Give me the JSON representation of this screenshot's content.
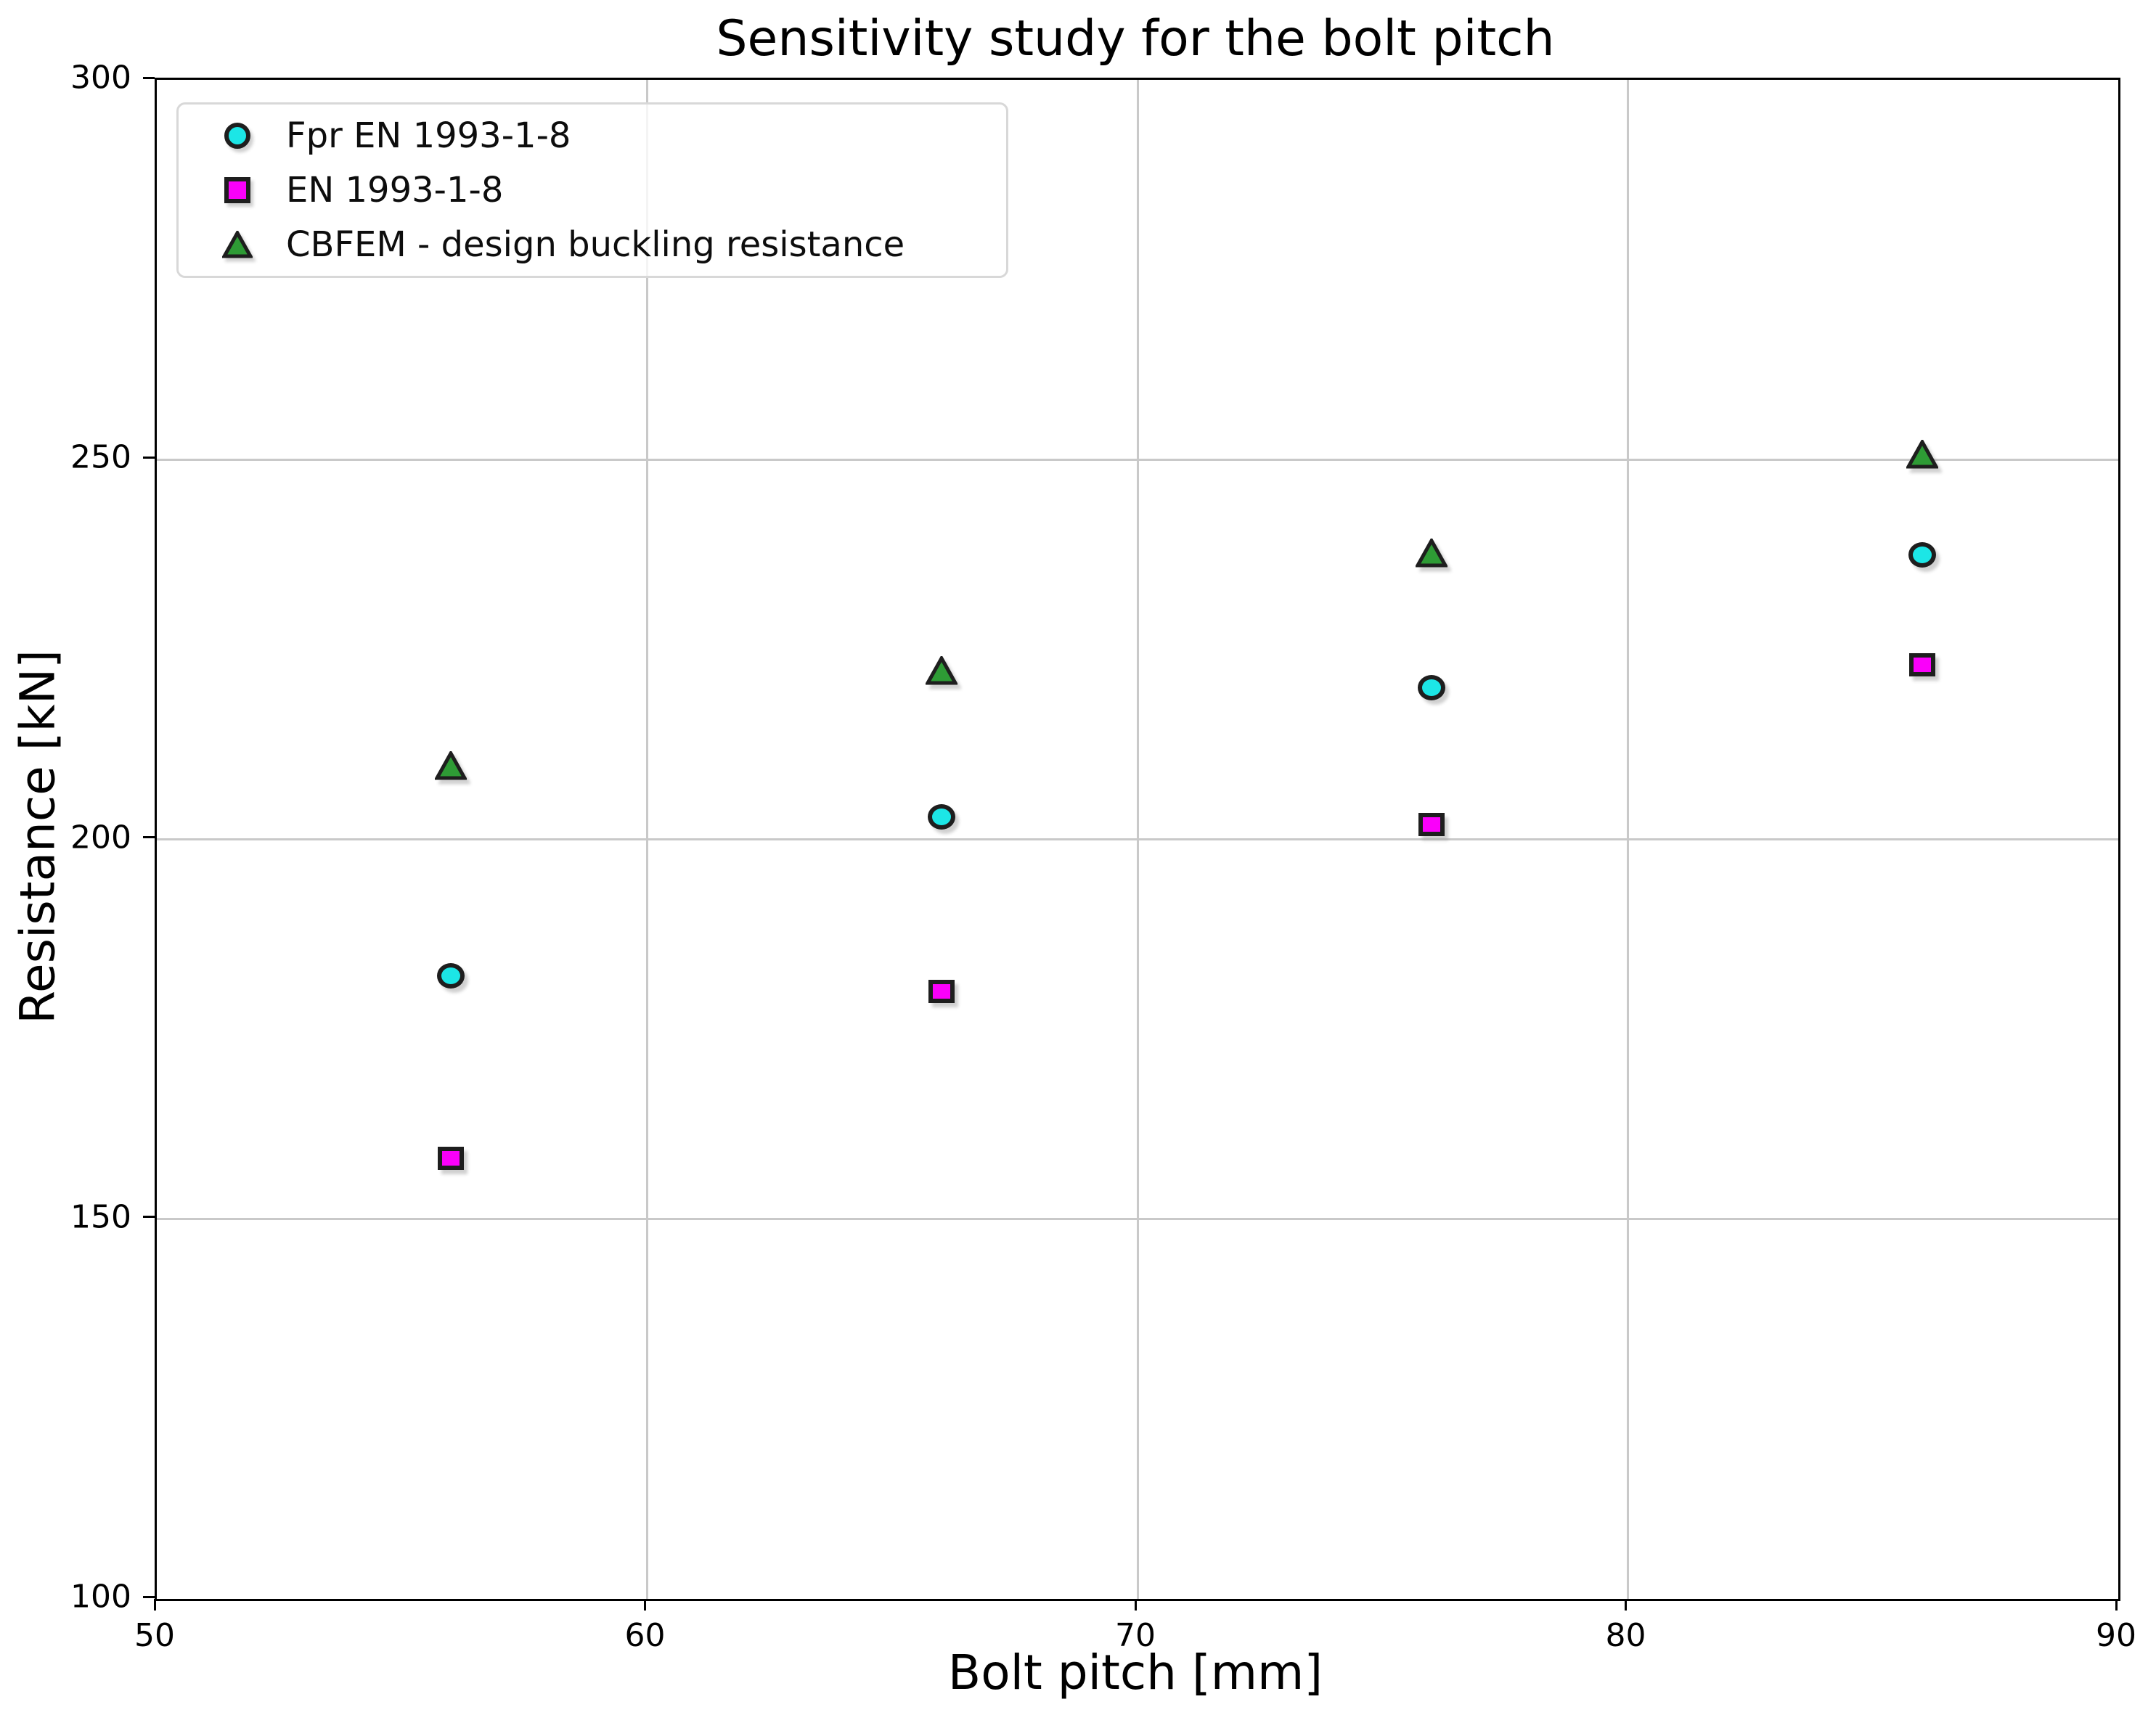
{
  "title": "Sensitivity study for the bolt pitch",
  "axes": {
    "xlabel": "Bolt pitch [mm]",
    "ylabel": "Resistance [kN]"
  },
  "legend": {
    "position": "upper left",
    "items": [
      {
        "label": "Fpr EN 1993-1-8",
        "marker": "circle-icon"
      },
      {
        "label": "EN 1993-1-8",
        "marker": "square-icon"
      },
      {
        "label": "CBFEM - design buckling resistance",
        "marker": "triangle-icon"
      }
    ]
  },
  "chart_data": {
    "type": "scatter",
    "title": "Sensitivity study for the bolt pitch",
    "xlabel": "Bolt pitch [mm]",
    "ylabel": "Resistance [kN]",
    "x": [
      56,
      66,
      76,
      86
    ],
    "series": [
      {
        "name": "Fpr EN 1993-1-8",
        "marker": "circle",
        "color": "#1ce6e6",
        "values": [
          182,
          203,
          220,
          237.5
        ]
      },
      {
        "name": "EN 1993-1-8",
        "marker": "square",
        "color": "#fa00fa",
        "values": [
          158,
          180,
          202,
          223
        ]
      },
      {
        "name": "CBFEM - design buckling resistance",
        "marker": "triangle",
        "color": "#2e9b35",
        "values": [
          209.5,
          222,
          237.5,
          250.5
        ]
      }
    ],
    "xlim": [
      50,
      90
    ],
    "ylim": [
      100,
      300
    ],
    "xticks": [
      50,
      60,
      70,
      80,
      90
    ],
    "yticks": [
      100,
      150,
      200,
      250,
      300
    ],
    "grid": true,
    "legend_position": "upper left"
  },
  "colors": {
    "marker_edge": "#1e1e1e",
    "gridline": "#c9c9c9",
    "spine": "#000000",
    "legend_border": "#d8d8d8",
    "background": "#ffffff"
  }
}
